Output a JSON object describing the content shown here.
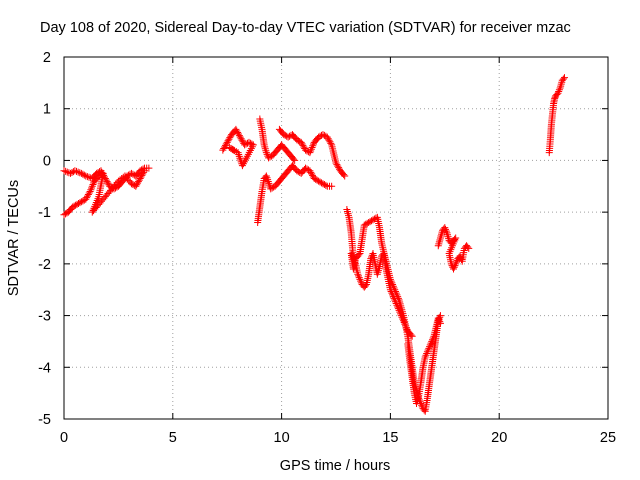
{
  "chart_data": {
    "type": "scatter",
    "title": "Day 108 of 2020, Sidereal Day-to-day VTEC variation (SDTVAR) for receiver mzac",
    "xlabel": "GPS time / hours",
    "ylabel": "SDTVAR / TECUs",
    "xlim": [
      0,
      25
    ],
    "ylim": [
      -5,
      2
    ],
    "xticks": [
      0,
      5,
      10,
      15,
      20,
      25
    ],
    "yticks": [
      -5,
      -4,
      -3,
      -2,
      -1,
      0,
      1,
      2
    ],
    "xtick_labels": [
      "0",
      "5",
      "10",
      "15",
      "20",
      "25"
    ],
    "ytick_labels": [
      "-5",
      "-4",
      "-3",
      "-2",
      "-1",
      "0",
      "1",
      "2"
    ],
    "grid": true,
    "marker": "plus",
    "color": "#ff0000",
    "segments": [
      [
        [
          0.0,
          -0.2
        ],
        [
          0.3,
          -0.25
        ],
        [
          0.5,
          -0.2
        ],
        [
          0.8,
          -0.25
        ],
        [
          1.0,
          -0.3
        ],
        [
          1.3,
          -0.35
        ],
        [
          1.5,
          -0.25
        ],
        [
          1.7,
          -0.2
        ],
        [
          1.9,
          -0.35
        ],
        [
          2.1,
          -0.5
        ],
        [
          2.3,
          -0.55
        ],
        [
          2.5,
          -0.5
        ],
        [
          2.7,
          -0.4
        ],
        [
          2.9,
          -0.3
        ],
        [
          3.1,
          -0.25
        ],
        [
          3.3,
          -0.3
        ],
        [
          3.5,
          -0.2
        ],
        [
          3.7,
          -0.15
        ],
        [
          3.9,
          -0.15
        ]
      ],
      [
        [
          0.0,
          -1.05
        ],
        [
          0.2,
          -1.0
        ],
        [
          0.4,
          -0.9
        ],
        [
          0.6,
          -0.85
        ],
        [
          0.8,
          -0.8
        ],
        [
          1.0,
          -0.75
        ],
        [
          1.2,
          -0.6
        ],
        [
          1.4,
          -0.4
        ],
        [
          1.6,
          -0.3
        ],
        [
          1.8,
          -0.25
        ],
        [
          1.6,
          -0.7
        ],
        [
          1.3,
          -1.0
        ],
        [
          1.6,
          -0.85
        ],
        [
          1.9,
          -0.7
        ],
        [
          2.2,
          -0.55
        ],
        [
          2.5,
          -0.4
        ],
        [
          2.8,
          -0.3
        ],
        [
          3.1,
          -0.45
        ],
        [
          3.3,
          -0.5
        ],
        [
          3.5,
          -0.35
        ],
        [
          3.7,
          -0.2
        ]
      ],
      [
        [
          7.3,
          0.2
        ],
        [
          7.5,
          0.35
        ],
        [
          7.7,
          0.5
        ],
        [
          7.9,
          0.6
        ],
        [
          8.1,
          0.45
        ],
        [
          8.3,
          0.3
        ],
        [
          8.5,
          0.35
        ],
        [
          8.7,
          0.3
        ],
        [
          8.2,
          -0.1
        ],
        [
          8.0,
          0.15
        ],
        [
          7.6,
          0.25
        ],
        [
          7.8,
          0.2
        ]
      ],
      [
        [
          9.0,
          0.8
        ],
        [
          9.1,
          0.6
        ],
        [
          9.2,
          0.3
        ],
        [
          9.3,
          0.15
        ],
        [
          9.4,
          0.05
        ],
        [
          9.6,
          0.1
        ],
        [
          9.8,
          0.2
        ],
        [
          10.0,
          0.3
        ],
        [
          10.2,
          0.2
        ],
        [
          10.4,
          0.1
        ],
        [
          10.6,
          0.0
        ]
      ],
      [
        [
          8.9,
          -1.2
        ],
        [
          9.0,
          -0.9
        ],
        [
          9.1,
          -0.6
        ],
        [
          9.2,
          -0.35
        ],
        [
          9.3,
          -0.3
        ],
        [
          9.5,
          -0.55
        ],
        [
          9.7,
          -0.5
        ],
        [
          9.9,
          -0.4
        ],
        [
          10.1,
          -0.3
        ],
        [
          10.3,
          -0.2
        ],
        [
          10.5,
          -0.1
        ],
        [
          10.7,
          -0.2
        ],
        [
          10.9,
          -0.25
        ],
        [
          11.1,
          -0.15
        ],
        [
          11.3,
          -0.2
        ],
        [
          11.5,
          -0.35
        ],
        [
          11.7,
          -0.4
        ],
        [
          11.9,
          -0.45
        ],
        [
          12.1,
          -0.5
        ],
        [
          12.3,
          -0.5
        ]
      ],
      [
        [
          9.9,
          0.6
        ],
        [
          10.1,
          0.5
        ],
        [
          10.3,
          0.45
        ],
        [
          10.5,
          0.5
        ],
        [
          10.7,
          0.4
        ],
        [
          10.9,
          0.35
        ],
        [
          11.1,
          0.2
        ],
        [
          11.3,
          0.15
        ],
        [
          11.5,
          0.35
        ],
        [
          11.7,
          0.45
        ],
        [
          11.9,
          0.5
        ],
        [
          12.1,
          0.45
        ],
        [
          12.3,
          0.3
        ],
        [
          12.5,
          -0.05
        ],
        [
          12.7,
          -0.2
        ],
        [
          12.9,
          -0.3
        ]
      ],
      [
        [
          13.0,
          -0.95
        ],
        [
          13.1,
          -1.1
        ],
        [
          13.2,
          -1.4
        ],
        [
          13.3,
          -1.9
        ],
        [
          13.4,
          -2.0
        ],
        [
          13.5,
          -2.2
        ],
        [
          13.6,
          -2.3
        ],
        [
          13.7,
          -2.4
        ],
        [
          13.8,
          -2.45
        ],
        [
          13.9,
          -2.4
        ],
        [
          14.0,
          -2.2
        ],
        [
          14.1,
          -1.9
        ],
        [
          14.2,
          -1.8
        ],
        [
          14.3,
          -2.0
        ],
        [
          14.4,
          -2.2
        ],
        [
          14.5,
          -2.05
        ],
        [
          14.6,
          -1.85
        ],
        [
          14.7,
          -1.8
        ],
        [
          14.8,
          -2.1
        ],
        [
          14.9,
          -2.3
        ],
        [
          15.0,
          -2.5
        ],
        [
          15.2,
          -2.7
        ],
        [
          15.4,
          -2.9
        ],
        [
          15.6,
          -3.1
        ],
        [
          15.8,
          -3.3
        ],
        [
          16.0,
          -3.4
        ]
      ],
      [
        [
          13.2,
          -1.8
        ],
        [
          13.3,
          -2.1
        ],
        [
          13.4,
          -1.9
        ],
        [
          13.6,
          -1.8
        ],
        [
          13.8,
          -1.25
        ],
        [
          14.0,
          -1.2
        ],
        [
          14.2,
          -1.15
        ],
        [
          14.4,
          -1.1
        ],
        [
          14.5,
          -1.3
        ],
        [
          14.6,
          -1.6
        ],
        [
          14.8,
          -1.95
        ],
        [
          15.0,
          -2.3
        ],
        [
          15.2,
          -2.5
        ],
        [
          15.4,
          -2.7
        ],
        [
          15.6,
          -3.0
        ],
        [
          15.8,
          -3.4
        ],
        [
          15.9,
          -3.7
        ],
        [
          16.0,
          -4.0
        ],
        [
          16.1,
          -4.3
        ],
        [
          16.3,
          -4.6
        ],
        [
          16.5,
          -4.8
        ],
        [
          16.6,
          -4.85
        ],
        [
          16.7,
          -4.6
        ],
        [
          16.8,
          -4.3
        ],
        [
          16.9,
          -4.0
        ],
        [
          17.0,
          -3.7
        ],
        [
          17.1,
          -3.4
        ],
        [
          17.2,
          -3.1
        ],
        [
          17.3,
          -3.0
        ]
      ],
      [
        [
          15.8,
          -3.55
        ],
        [
          15.9,
          -3.9
        ],
        [
          16.0,
          -4.2
        ],
        [
          16.1,
          -4.5
        ],
        [
          16.2,
          -4.7
        ],
        [
          16.3,
          -4.55
        ],
        [
          16.4,
          -4.3
        ],
        [
          16.5,
          -4.0
        ],
        [
          16.6,
          -3.8
        ],
        [
          16.8,
          -3.6
        ],
        [
          17.0,
          -3.4
        ],
        [
          17.2,
          -3.05
        ],
        [
          17.3,
          -3.15
        ]
      ],
      [
        [
          17.2,
          -1.65
        ],
        [
          17.3,
          -1.5
        ],
        [
          17.4,
          -1.35
        ],
        [
          17.5,
          -1.3
        ],
        [
          17.6,
          -1.4
        ],
        [
          17.7,
          -1.55
        ],
        [
          17.8,
          -1.6
        ],
        [
          17.9,
          -1.55
        ],
        [
          18.0,
          -1.5
        ],
        [
          17.7,
          -1.8
        ],
        [
          17.8,
          -2.0
        ],
        [
          17.9,
          -2.1
        ],
        [
          18.0,
          -2.0
        ],
        [
          18.1,
          -1.9
        ],
        [
          18.2,
          -1.85
        ],
        [
          18.3,
          -1.95
        ],
        [
          18.4,
          -1.7
        ],
        [
          18.5,
          -1.65
        ],
        [
          18.6,
          -1.7
        ]
      ],
      [
        [
          22.3,
          0.15
        ],
        [
          22.35,
          0.4
        ],
        [
          22.4,
          0.7
        ],
        [
          22.45,
          0.9
        ],
        [
          22.5,
          1.1
        ],
        [
          22.55,
          1.2
        ],
        [
          22.6,
          1.25
        ],
        [
          22.7,
          1.3
        ],
        [
          22.8,
          1.4
        ],
        [
          22.9,
          1.55
        ],
        [
          23.0,
          1.6
        ]
      ]
    ]
  }
}
